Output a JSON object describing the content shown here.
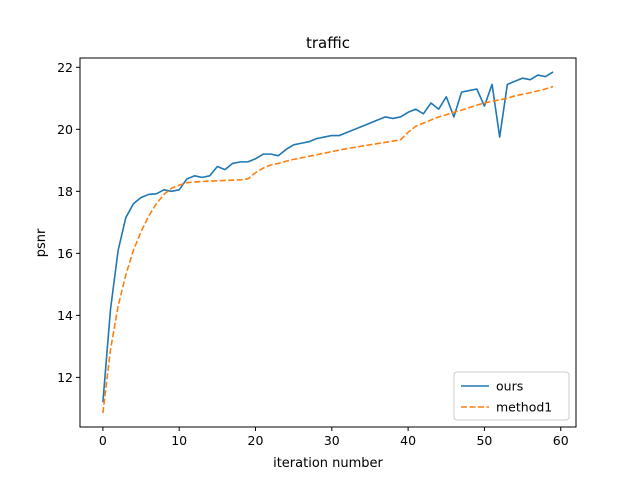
{
  "chart_data": {
    "type": "line",
    "title": "traffic",
    "xlabel": "iteration number",
    "ylabel": "psnr",
    "xlim": [
      -3,
      62
    ],
    "ylim": [
      10.4,
      22.3
    ],
    "xticks": [
      0,
      10,
      20,
      30,
      40,
      50,
      60
    ],
    "yticks": [
      12,
      14,
      16,
      18,
      20,
      22
    ],
    "grid": false,
    "legend_position": "lower-right",
    "series": [
      {
        "name": "ours",
        "color": "#1f77b4",
        "dash": "solid",
        "x": [
          0,
          1,
          2,
          3,
          4,
          5,
          6,
          7,
          8,
          9,
          10,
          11,
          12,
          13,
          14,
          15,
          16,
          17,
          18,
          19,
          20,
          21,
          22,
          23,
          24,
          25,
          26,
          27,
          28,
          29,
          30,
          31,
          32,
          33,
          34,
          35,
          36,
          37,
          38,
          39,
          40,
          41,
          42,
          43,
          44,
          45,
          46,
          47,
          48,
          49,
          50,
          51,
          52,
          53,
          54,
          55,
          56,
          57,
          58,
          59
        ],
        "y": [
          11.2,
          14.2,
          16.1,
          17.15,
          17.6,
          17.8,
          17.9,
          17.92,
          18.05,
          18.0,
          18.05,
          18.4,
          18.5,
          18.45,
          18.5,
          18.8,
          18.7,
          18.9,
          18.95,
          18.95,
          19.05,
          19.2,
          19.2,
          19.15,
          19.35,
          19.5,
          19.55,
          19.6,
          19.7,
          19.75,
          19.8,
          19.8,
          19.9,
          20.0,
          20.1,
          20.2,
          20.3,
          20.4,
          20.35,
          20.4,
          20.55,
          20.65,
          20.5,
          20.85,
          20.65,
          21.05,
          20.4,
          21.2,
          21.25,
          21.3,
          20.75,
          21.45,
          19.75,
          21.45,
          21.55,
          21.65,
          21.6,
          21.75,
          21.7,
          21.85
        ]
      },
      {
        "name": "method1",
        "color": "#ff7f0e",
        "dash": "dashed",
        "x": [
          0,
          1,
          2,
          3,
          4,
          5,
          6,
          7,
          8,
          9,
          10,
          11,
          12,
          13,
          14,
          15,
          16,
          17,
          18,
          19,
          20,
          21,
          22,
          23,
          24,
          25,
          26,
          27,
          28,
          29,
          30,
          31,
          32,
          33,
          34,
          35,
          36,
          37,
          38,
          39,
          40,
          41,
          42,
          43,
          44,
          45,
          46,
          47,
          48,
          49,
          50,
          51,
          52,
          53,
          54,
          55,
          56,
          57,
          58,
          59
        ],
        "y": [
          10.85,
          12.9,
          14.3,
          15.3,
          16.1,
          16.7,
          17.2,
          17.6,
          17.9,
          18.1,
          18.2,
          18.28,
          18.3,
          18.32,
          18.33,
          18.34,
          18.35,
          18.36,
          18.37,
          18.4,
          18.6,
          18.75,
          18.85,
          18.9,
          18.97,
          19.03,
          19.08,
          19.13,
          19.18,
          19.23,
          19.28,
          19.33,
          19.38,
          19.42,
          19.46,
          19.5,
          19.54,
          19.58,
          19.62,
          19.66,
          19.9,
          20.1,
          20.2,
          20.3,
          20.4,
          20.47,
          20.55,
          20.62,
          20.7,
          20.78,
          20.85,
          20.9,
          20.95,
          21.0,
          21.08,
          21.13,
          21.18,
          21.24,
          21.3,
          21.38
        ]
      }
    ]
  }
}
